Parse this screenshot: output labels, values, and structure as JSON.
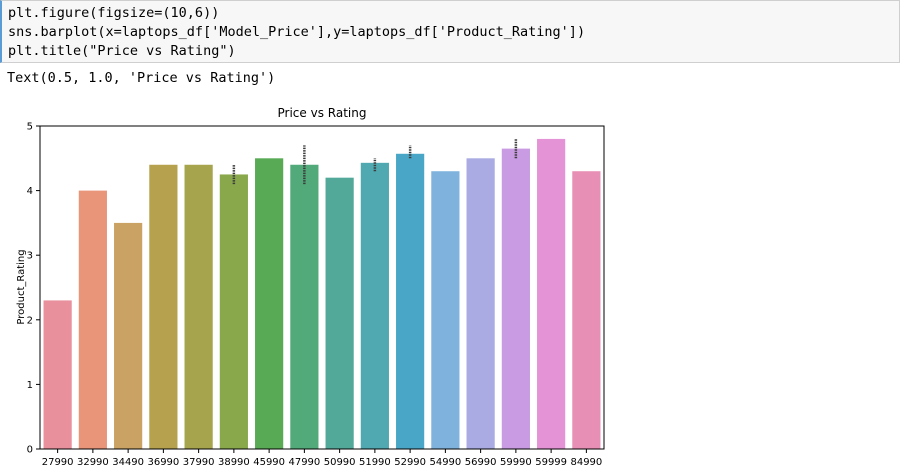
{
  "notebook": {
    "code_lines": [
      "plt.figure(figsize=(10,6))",
      "sns.barplot(x=laptops_df['Model_Price'],y=laptops_df['Product_Rating'])",
      "plt.title(\"Price vs Rating\")"
    ],
    "output_text": "Text(0.5, 1.0, 'Price vs Rating')"
  },
  "chart_data": {
    "type": "bar",
    "title": "Price vs Rating",
    "xlabel": "",
    "ylabel": "Product_Rating",
    "ylim": [
      0,
      5
    ],
    "yticks": [
      0,
      1,
      2,
      3,
      4,
      5
    ],
    "grid": false,
    "categories": [
      "27990",
      "32990",
      "34490",
      "36990",
      "37990",
      "38990",
      "45990",
      "47990",
      "50990",
      "51990",
      "52990",
      "54990",
      "56990",
      "59990",
      "59999",
      "84990"
    ],
    "values": [
      2.3,
      4.0,
      3.5,
      4.4,
      4.4,
      4.25,
      4.5,
      4.4,
      4.2,
      4.43,
      4.57,
      4.3,
      4.5,
      4.65,
      4.8,
      4.3
    ],
    "error_bars": [
      null,
      null,
      null,
      null,
      null,
      [
        4.1,
        4.4
      ],
      null,
      [
        4.1,
        4.7
      ],
      null,
      [
        4.3,
        4.5
      ],
      [
        4.5,
        4.7
      ],
      null,
      null,
      [
        4.5,
        4.8
      ],
      null,
      null
    ],
    "colors": [
      "#e8909c",
      "#e8957a",
      "#c9a264",
      "#b6a24e",
      "#a6a44d",
      "#89a84c",
      "#58aa55",
      "#52aa7a",
      "#52a99a",
      "#50a9b0",
      "#4aa6c6",
      "#7fb3de",
      "#a9abe2",
      "#c89be2",
      "#e494d6",
      "#e78fb5"
    ]
  }
}
